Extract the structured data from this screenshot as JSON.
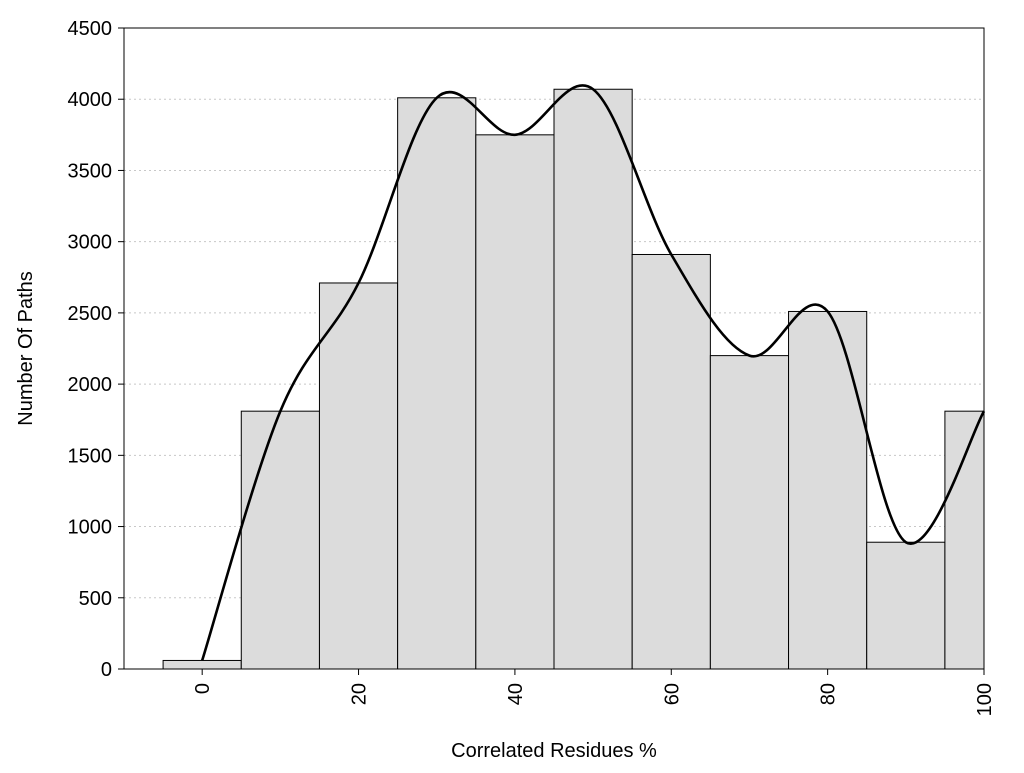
{
  "chart_data": {
    "type": "bar",
    "title": "",
    "xlabel": "Correlated Residues %",
    "ylabel": "Number Of Paths",
    "x": [
      0,
      10,
      20,
      30,
      40,
      50,
      60,
      70,
      80,
      90,
      100
    ],
    "values": [
      60,
      1810,
      2710,
      4010,
      3750,
      4070,
      2910,
      2200,
      2510,
      890,
      1810
    ],
    "bin_width": 10,
    "xlim": [
      -10,
      100
    ],
    "ylim": [
      0,
      4500
    ],
    "xticks": [
      0,
      20,
      40,
      60,
      80,
      100
    ],
    "yticks": [
      0,
      500,
      1000,
      1500,
      2000,
      2500,
      3000,
      3500,
      4000,
      4500
    ],
    "xtick_rotation": "vertical",
    "grid": "horizontal-dotted",
    "legend": "none",
    "smooth_curve": true,
    "colors": {
      "bar_fill": "#dcdcdc",
      "bar_stroke": "#000000",
      "curve": "#000000",
      "grid": "#c8c8c8"
    }
  }
}
